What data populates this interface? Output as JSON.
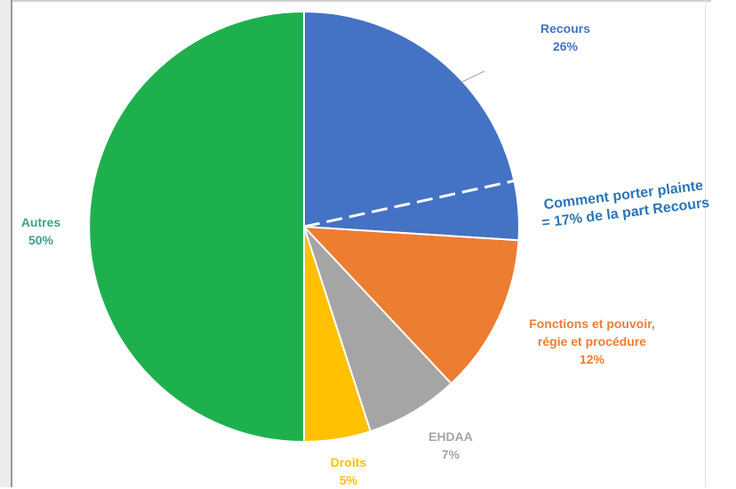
{
  "chart_data": {
    "type": "pie",
    "title": "",
    "legend": "none",
    "slices": [
      {
        "label": "Recours",
        "percent_label": "26%",
        "value": 26,
        "color": "#4472c4"
      },
      {
        "label": "Fonctions et pouvoir, régie et procédure",
        "label_lines": [
          "Fonctions et pouvoir,",
          "régie et procédure"
        ],
        "percent_label": "12%",
        "value": 12,
        "color": "#ed7d31"
      },
      {
        "label": "EHDAA",
        "percent_label": "7%",
        "value": 7,
        "color": "#a5a5a5"
      },
      {
        "label": "Droits",
        "percent_label": "5%",
        "value": 5,
        "color": "#ffc000"
      },
      {
        "label": "Autres",
        "percent_label": "50%",
        "value": 50,
        "color": "#1fb04e"
      }
    ],
    "annotation": {
      "lines": [
        "Comment porter plainte",
        "= 17% de la part Recours"
      ],
      "color": "#2e74b5",
      "share_of_slice": "Recours",
      "share_percent": 17
    }
  },
  "colors": {
    "annotation_text": "#2e74b5",
    "autres_label": "#3aa38a",
    "background": "#ffffff"
  }
}
